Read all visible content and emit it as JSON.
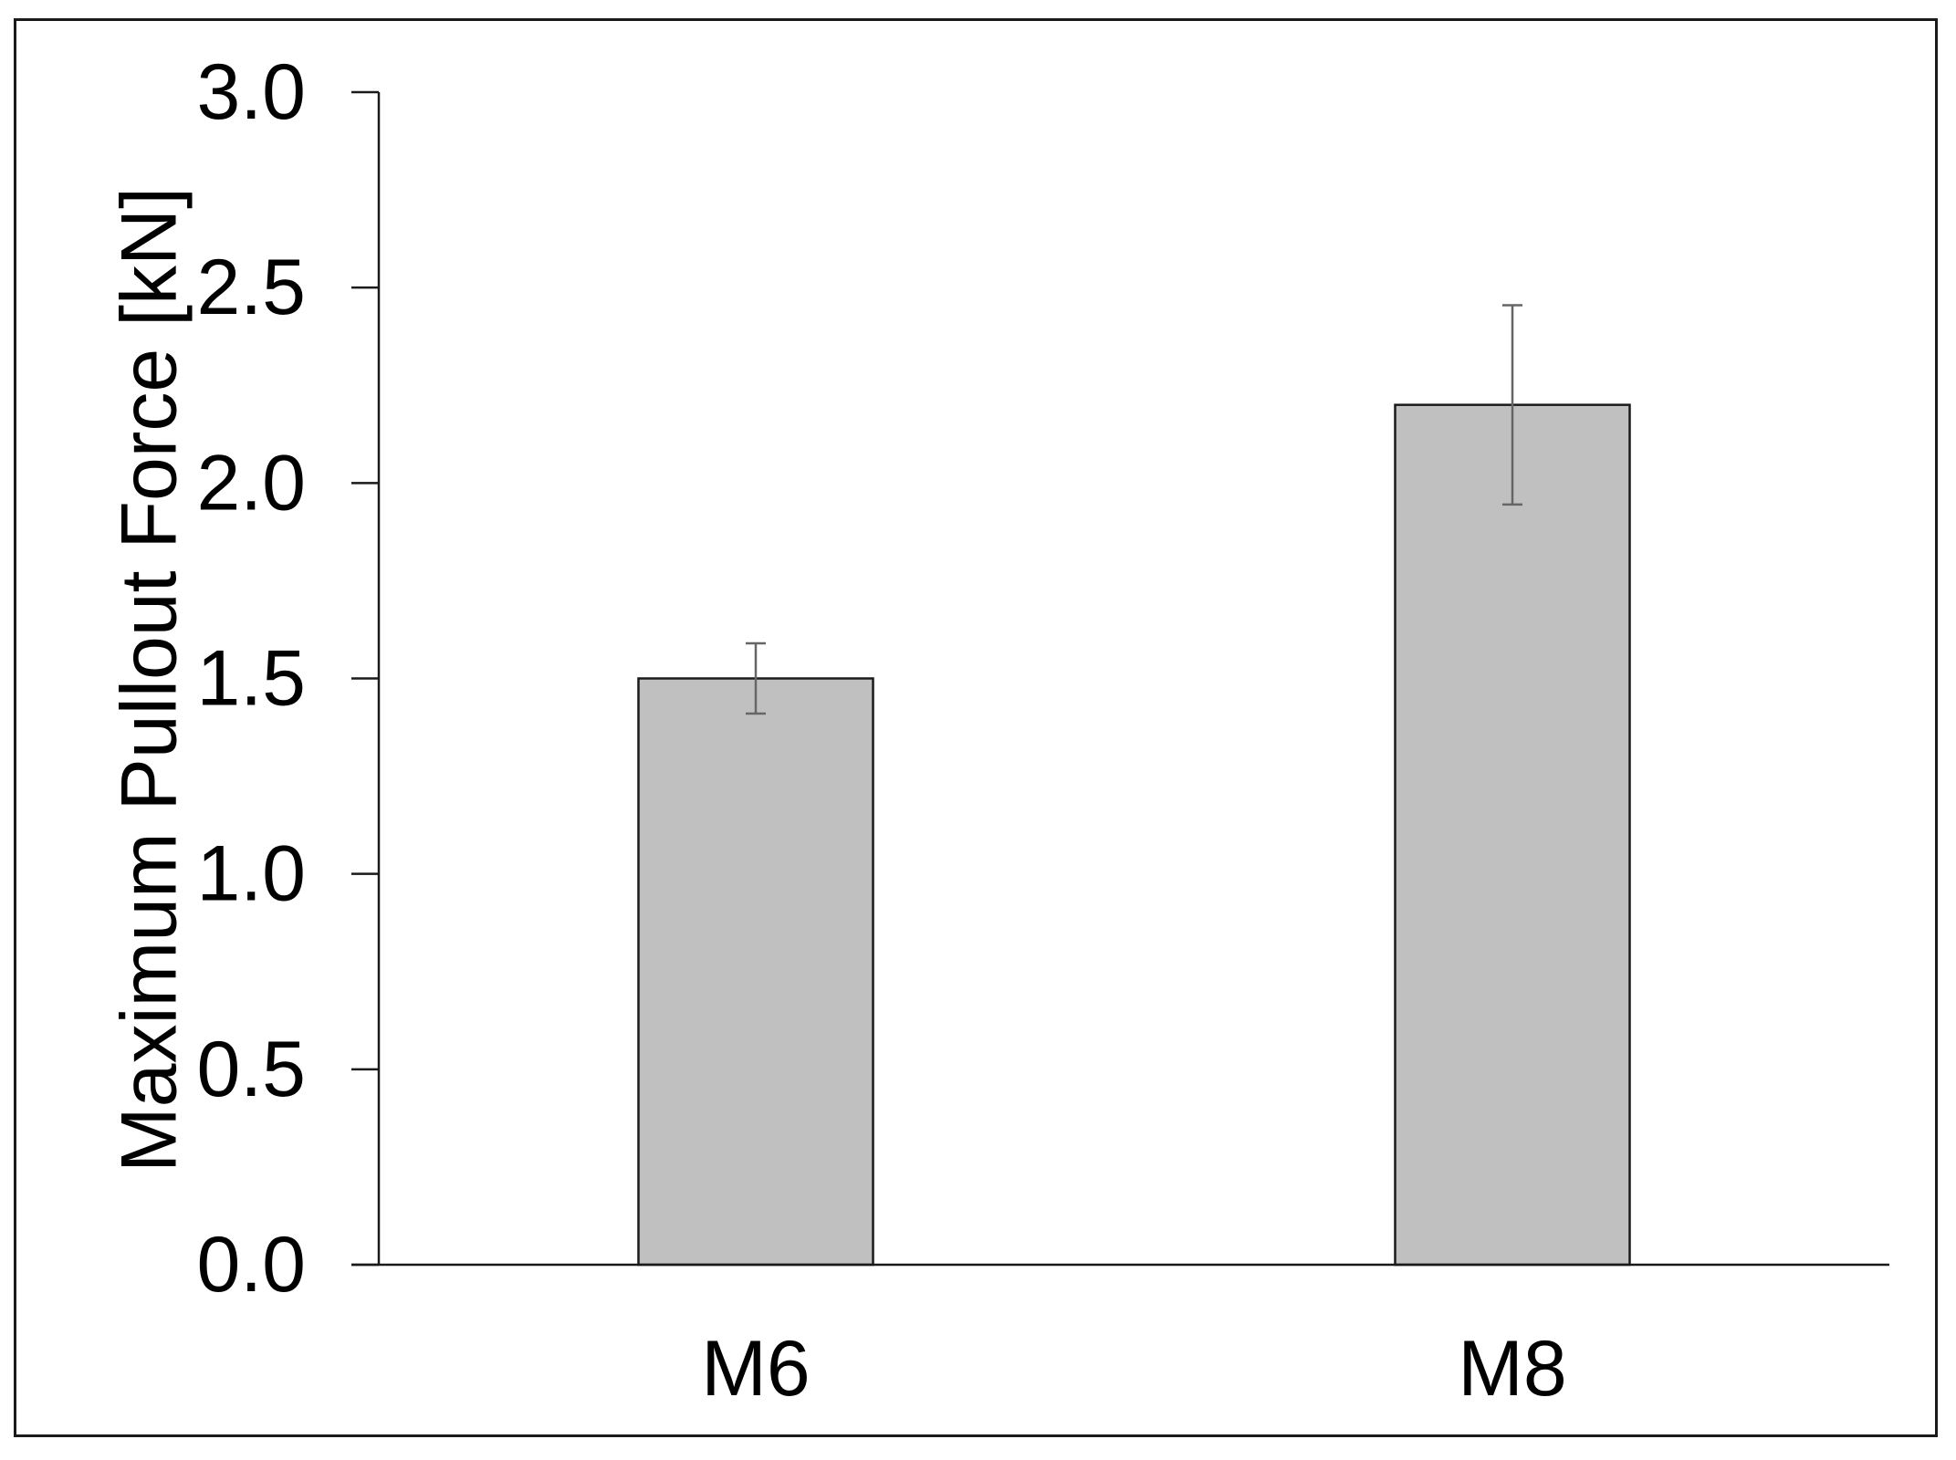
{
  "chart_data": {
    "type": "bar",
    "categories": [
      "M6",
      "M8"
    ],
    "series": [
      {
        "values": [
          1.5,
          2.2
        ],
        "error": [
          0.09,
          0.255
        ],
        "color": "#c0c0c0"
      }
    ],
    "xlabel": "",
    "ylabel": "Maximum Pullout Force [kN]",
    "ylim": [
      0,
      3.0
    ],
    "yticks": [
      "0.0",
      "0.5",
      "1.0",
      "1.5",
      "2.0",
      "2.5",
      "3.0"
    ],
    "grid": false,
    "legend": "none"
  },
  "colors": {
    "bar_fill": "#c0c0c0",
    "bar_stroke": "#1a1a1a",
    "axis": "#1a1a1a",
    "error_bar": "#666666"
  }
}
